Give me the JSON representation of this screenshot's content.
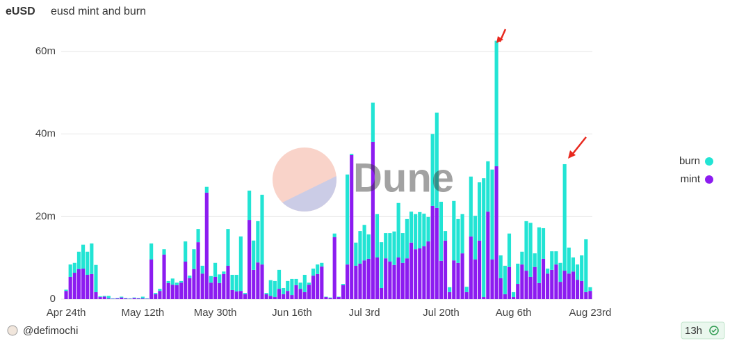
{
  "header": {
    "dashboard": "eUSD"
  },
  "watermark": "Dune",
  "footer": {
    "author": "@defimochi",
    "age": "13h"
  },
  "chart_data": {
    "type": "bar",
    "stacked": true,
    "title": "eusd mint and burn",
    "categories": [
      "Apr 24th",
      null,
      null,
      null,
      null,
      null,
      null,
      null,
      null,
      null,
      null,
      null,
      null,
      null,
      null,
      null,
      null,
      null,
      "May 12th",
      null,
      null,
      null,
      null,
      null,
      null,
      null,
      null,
      null,
      null,
      null,
      null,
      null,
      null,
      null,
      null,
      "May 30th",
      null,
      null,
      null,
      null,
      null,
      null,
      null,
      null,
      null,
      null,
      null,
      null,
      null,
      null,
      null,
      null,
      null,
      "Jun 16th",
      null,
      null,
      null,
      null,
      null,
      null,
      null,
      null,
      null,
      null,
      null,
      null,
      null,
      null,
      null,
      null,
      "Jul 3rd",
      null,
      null,
      null,
      null,
      null,
      null,
      null,
      null,
      null,
      null,
      null,
      null,
      null,
      null,
      null,
      null,
      null,
      "Jul 20th",
      null,
      null,
      null,
      null,
      null,
      null,
      null,
      null,
      null,
      null,
      null,
      null,
      null,
      null,
      null,
      null,
      "Aug 6th",
      null,
      null,
      null,
      null,
      null,
      null,
      null,
      null,
      null,
      null,
      null,
      null,
      null,
      null,
      null,
      null,
      null,
      "Aug 23rd"
    ],
    "series": [
      {
        "name": "mint",
        "color": "#8c1cf0",
        "values": [
          2,
          5.4,
          6.4,
          7.3,
          7.4,
          5.9,
          6.1,
          1.7,
          0.5,
          0.6,
          0.2,
          0.1,
          0.2,
          0.4,
          0.2,
          0.1,
          0.3,
          0.2,
          0.2,
          0.1,
          9.6,
          1.2,
          2,
          10.8,
          3.9,
          3.5,
          3.4,
          4,
          9.1,
          5.1,
          7.3,
          13.8,
          6.2,
          25.8,
          4,
          5.4,
          3.9,
          6.1,
          8.1,
          2.2,
          1.9,
          2,
          1.2,
          19.2,
          7.1,
          8.9,
          8.4,
          1.2,
          0.8,
          0.5,
          2.5,
          1.2,
          2,
          1,
          3.4,
          2.5,
          1.7,
          3.5,
          5.7,
          6.1,
          7.9,
          0.5,
          0.3,
          15,
          0.5,
          3.4,
          8.4,
          34.9,
          8.1,
          8.6,
          9.4,
          9.8,
          38.1,
          10.1,
          2.7,
          9.9,
          9.1,
          8.3,
          10.1,
          8.8,
          9.9,
          13.7,
          12.1,
          12.3,
          12.8,
          14,
          22.6,
          22.1,
          9.3,
          14.2,
          1.7,
          9.4,
          8.8,
          11.1,
          1.7,
          15.2,
          9.6,
          14.2,
          0.5,
          21.2,
          9.6,
          32.2,
          5.1,
          1.2,
          7.8,
          0.5,
          3.7,
          8.4,
          6.9,
          5.4,
          7.8,
          3.9,
          9.8,
          6.2,
          7.1,
          8.4,
          4.2,
          6.9,
          6.2,
          6.7,
          4.7,
          4.4,
          1.7,
          2
        ]
      },
      {
        "name": "burn",
        "color": "#22e4d4",
        "values": [
          0.3,
          3,
          2.4,
          4.2,
          5.8,
          5.6,
          7.4,
          6.6,
          0.2,
          0.2,
          0.6,
          0.1,
          0.1,
          0.2,
          0.1,
          0.1,
          0.1,
          0.1,
          0.4,
          0.1,
          3.9,
          0.3,
          0.5,
          1.3,
          0.5,
          1.5,
          0.6,
          0.4,
          4.9,
          0.6,
          4.8,
          3.2,
          1.9,
          1.4,
          1.6,
          3.4,
          2.1,
          0.6,
          8.9,
          3.7,
          4,
          13.2,
          0.3,
          7.1,
          7.1,
          10,
          16.9,
          0.3,
          3.8,
          3.9,
          4.6,
          1.5,
          2.4,
          3.9,
          1.5,
          1.5,
          4.2,
          0.5,
          1.7,
          2.3,
          0.9,
          0.1,
          0.1,
          0.9,
          0.1,
          0.3,
          21.8,
          0.3,
          5.6,
          7.9,
          8.6,
          5.9,
          9.5,
          10.5,
          11.1,
          6.1,
          6.9,
          8.1,
          13.2,
          7.2,
          9.5,
          7.5,
          8.5,
          8.8,
          7.9,
          5.9,
          17.4,
          23.1,
          14.3,
          2.3,
          1.2,
          14.4,
          10.6,
          9.5,
          1.3,
          14.5,
          10.6,
          14.1,
          28.8,
          12.2,
          21.8,
          30.4,
          5.5,
          6.9,
          8.1,
          1.2,
          4.9,
          3.1,
          12,
          13.1,
          3.3,
          13.5,
          7.4,
          1.2,
          4.5,
          3.2,
          4.6,
          25.8,
          6.3,
          3.4,
          3.7,
          6.2,
          12.8,
          0.9
        ]
      }
    ],
    "ylim": [
      0,
      65
    ],
    "yticks": [
      0,
      {
        "value": 20,
        "label": "20m"
      },
      {
        "value": 40,
        "label": "40m"
      },
      {
        "value": 60,
        "label": "60m"
      }
    ],
    "grid": true,
    "legend": "right"
  }
}
